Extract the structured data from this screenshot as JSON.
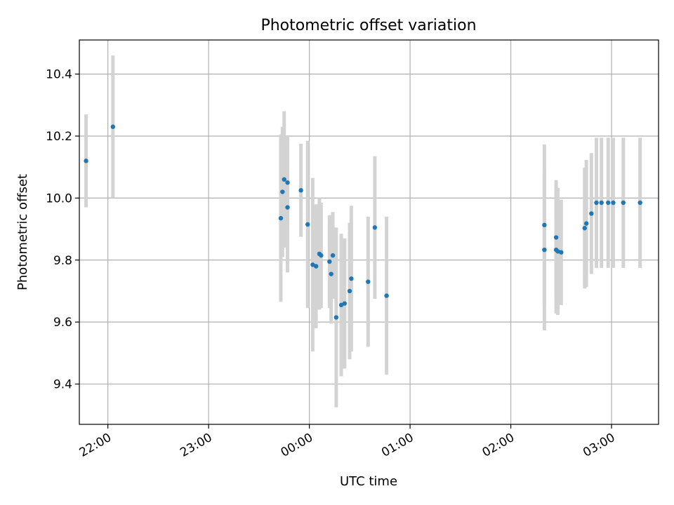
{
  "chart_data": {
    "type": "scatter",
    "title": "Photometric offset variation",
    "xlabel": "UTC time",
    "ylabel": "Photometric offset",
    "x_tick_labels": [
      "22:00",
      "23:00",
      "00:00",
      "01:00",
      "02:00",
      "03:00"
    ],
    "x_tick_times": [
      "22:00",
      "23:00",
      "00:00",
      "01:00",
      "02:00",
      "03:00"
    ],
    "y_ticks": [
      9.4,
      9.6,
      9.8,
      10.0,
      10.2,
      10.4
    ],
    "y_tick_labels": [
      "9.4",
      "9.6",
      "9.8",
      "10.0",
      "10.2",
      "10.4"
    ],
    "xlim": [
      "21:43",
      "03:28"
    ],
    "ylim": [
      9.27,
      10.51
    ],
    "grid": true,
    "colors": {
      "point": "#1f77b4",
      "errorbar": "#d3d3d3",
      "grid": "#b0b0b0"
    },
    "series": [
      {
        "points": [
          {
            "t": "21:47",
            "y": 10.12,
            "err": 0.15
          },
          {
            "t": "22:03",
            "y": 10.23,
            "err": 0.23
          },
          {
            "t": "23:43",
            "y": 9.935,
            "err": 0.27
          },
          {
            "t": "23:44",
            "y": 10.02,
            "err": 0.21
          },
          {
            "t": "23:45",
            "y": 10.06,
            "err": 0.22
          },
          {
            "t": "23:47",
            "y": 10.05,
            "err": 0.15
          },
          {
            "t": "23:47",
            "y": 9.97,
            "err": 0.21
          },
          {
            "t": "23:55",
            "y": 10.025,
            "err": 0.15
          },
          {
            "t": "23:59",
            "y": 9.915,
            "err": 0.27
          },
          {
            "t": "00:02",
            "y": 9.785,
            "err": 0.28
          },
          {
            "t": "00:04",
            "y": 9.78,
            "err": 0.2
          },
          {
            "t": "00:06",
            "y": 9.82,
            "err": 0.18
          },
          {
            "t": "00:07",
            "y": 9.815,
            "err": 0.17
          },
          {
            "t": "00:12",
            "y": 9.795,
            "err": 0.15
          },
          {
            "t": "00:13",
            "y": 9.755,
            "err": 0.16
          },
          {
            "t": "00:14",
            "y": 9.815,
            "err": 0.14
          },
          {
            "t": "00:16",
            "y": 9.615,
            "err": 0.29
          },
          {
            "t": "00:19",
            "y": 9.655,
            "err": 0.23
          },
          {
            "t": "00:21",
            "y": 9.66,
            "err": 0.21
          },
          {
            "t": "00:24",
            "y": 9.7,
            "err": 0.22
          },
          {
            "t": "00:25",
            "y": 9.74,
            "err": 0.235
          },
          {
            "t": "00:35",
            "y": 9.73,
            "err": 0.21
          },
          {
            "t": "00:39",
            "y": 9.905,
            "err": 0.23
          },
          {
            "t": "00:46",
            "y": 9.685,
            "err": 0.255
          },
          {
            "t": "02:20",
            "y": 9.913,
            "err": 0.26
          },
          {
            "t": "02:20",
            "y": 9.833,
            "err": 0.26
          },
          {
            "t": "02:27",
            "y": 9.873,
            "err": 0.185
          },
          {
            "t": "02:27",
            "y": 9.833,
            "err": 0.205
          },
          {
            "t": "02:28",
            "y": 9.828,
            "err": 0.205
          },
          {
            "t": "02:30",
            "y": 9.825,
            "err": 0.17
          },
          {
            "t": "02:44",
            "y": 9.903,
            "err": 0.195
          },
          {
            "t": "02:45",
            "y": 9.918,
            "err": 0.205
          },
          {
            "t": "02:48",
            "y": 9.95,
            "err": 0.195
          },
          {
            "t": "02:51",
            "y": 9.985,
            "err": 0.21
          },
          {
            "t": "02:54",
            "y": 9.985,
            "err": 0.21
          },
          {
            "t": "02:58",
            "y": 9.985,
            "err": 0.21
          },
          {
            "t": "03:01",
            "y": 9.985,
            "err": 0.21
          },
          {
            "t": "03:07",
            "y": 9.985,
            "err": 0.21
          },
          {
            "t": "03:17",
            "y": 9.985,
            "err": 0.21
          }
        ]
      }
    ]
  }
}
